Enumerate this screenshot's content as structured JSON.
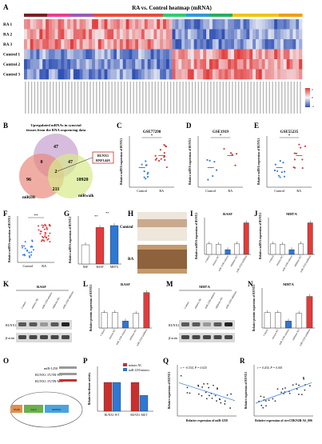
{
  "panel_letters": [
    "A",
    "B",
    "C",
    "D",
    "E",
    "F",
    "G",
    "H",
    "I",
    "J",
    "K",
    "L",
    "M",
    "N",
    "O",
    "P",
    "Q",
    "R"
  ],
  "heatmap": {
    "title": "RA vs. Control heatmap (mRNA)",
    "rows": [
      "RA 1",
      "RA 2",
      "RA 3",
      "Control 1",
      "Control 2",
      "Control 3"
    ],
    "legend_ticks": [
      "2",
      "0",
      "-2"
    ],
    "colors": {
      "high": "#e23b3b",
      "low": "#2d4fb3",
      "mid": "#f4f4f8"
    }
  },
  "venn": {
    "title": "Upregulated mRNAs in synovial tissues from the RNA sequencing data",
    "sets": [
      "miRDB",
      "miRwalk"
    ],
    "counts": [
      "47",
      "0",
      "47",
      "96",
      "2",
      "10920",
      "211"
    ],
    "callout": [
      "RUNX1",
      "RNF144A"
    ]
  },
  "geo": [
    {
      "title": "GSE77298",
      "ylabel": "Relative mRNA expression of RUNX1",
      "cats": [
        "Control",
        "RA"
      ],
      "sig": "*"
    },
    {
      "title": "GSE1919",
      "ylabel": "Relative mRNA expression of RUNX1",
      "cats": [
        "Control",
        "RA"
      ],
      "sig": "*"
    },
    {
      "title": "GSE55235",
      "ylabel": "Relative mRNA expression of RUNX1",
      "cats": [
        "Control",
        "RA"
      ],
      "sig": "*"
    }
  ],
  "panelF": {
    "ylabel": "Relative mRNA expression of RUNX1",
    "cats": [
      "Control",
      "RA"
    ],
    "sig": "**"
  },
  "panelG": {
    "ylabel": "Relative mRNA expression of RUNX1",
    "cats": [
      "NSF",
      "RASF",
      "MH7A"
    ],
    "values": [
      1.0,
      1.9,
      2.0
    ],
    "sig": [
      "**",
      "**"
    ]
  },
  "panelH": {
    "labels": [
      "Control",
      "RA"
    ]
  },
  "panelI": {
    "title": "RASF",
    "ylabel": "Relative mRNA expression of RUNX1",
    "cats": [
      "Control",
      "mimics NC",
      "miR-1250 mimics",
      "inhibitor NC",
      "miR-1250 inhibitor"
    ],
    "values": [
      1.0,
      0.95,
      0.45,
      1.0,
      3.0
    ]
  },
  "panelJ": {
    "title": "MH7A",
    "ylabel": "Relative mRNA expression of RUNX1",
    "cats": [
      "Control",
      "mimics NC",
      "miR-1250 mimics",
      "inhibitor NC",
      "miR-1250 inhibitor"
    ],
    "values": [
      1.0,
      0.95,
      0.45,
      1.0,
      3.0
    ]
  },
  "panelK": {
    "title": "RASF",
    "lanes": [
      "Control",
      "mimics NC",
      "miR-1250 mimics",
      "inhibitor NC",
      "miR-1250 inhibitor"
    ],
    "bands": [
      "RUNX1",
      "β-actin"
    ]
  },
  "panelL": {
    "title": "RASF",
    "ylabel": "Relative protein expression of RUNX1",
    "cats": [
      "Control",
      "mimics NC",
      "miR-1250 mimics",
      "inhibitor NC",
      "miR-1250 inhibitor"
    ],
    "values": [
      1.0,
      1.0,
      0.45,
      0.95,
      2.3
    ]
  },
  "panelM": {
    "title": "MH7A",
    "lanes": [
      "Control",
      "mimics NC",
      "miR-1250 mimics",
      "inhibitor NC",
      "miR-1250 inhibitor"
    ],
    "bands": [
      "RUNX1",
      "β-actin"
    ]
  },
  "panelN": {
    "title": "MH7A",
    "ylabel": "Relative protein expression of RUNX1",
    "cats": [
      "Control",
      "mimics NC",
      "miR-1250 mimics",
      "inhibitor NC",
      "miR-1250 inhibitor"
    ],
    "values": [
      1.0,
      1.0,
      0.45,
      0.95,
      2.05
    ]
  },
  "panelO": {
    "seqs": [
      "miR-1250",
      "RUNX1 3'UTR-WT",
      "RUNX1 3'UTR-Mut"
    ],
    "promoter": "SV40",
    "gene": "Luc2",
    "utr": "RUNX1"
  },
  "panelP": {
    "ylabel": "Relative luciferase activity",
    "legend": [
      "mimics NC",
      "miR-1250 mimics"
    ],
    "groups": [
      "RUNX1-WT",
      "RUNX1-MUT"
    ],
    "values": [
      [
        1.0,
        1.0
      ],
      [
        1.0,
        0.55
      ]
    ],
    "colors": [
      "#c9302c",
      "#2e78d2"
    ]
  },
  "panelQ": {
    "stat": "r = -0.554, P = 0.025",
    "xlabel": "Relative expression of miR-1250",
    "ylabel": "Relative expression of RUNX1"
  },
  "panelR": {
    "stat": "r = 0.434, P = 0.001",
    "xlabel": "Relative expression of circCDKN2B-AS_006",
    "ylabel": "Relative expression of RUNX1"
  }
}
